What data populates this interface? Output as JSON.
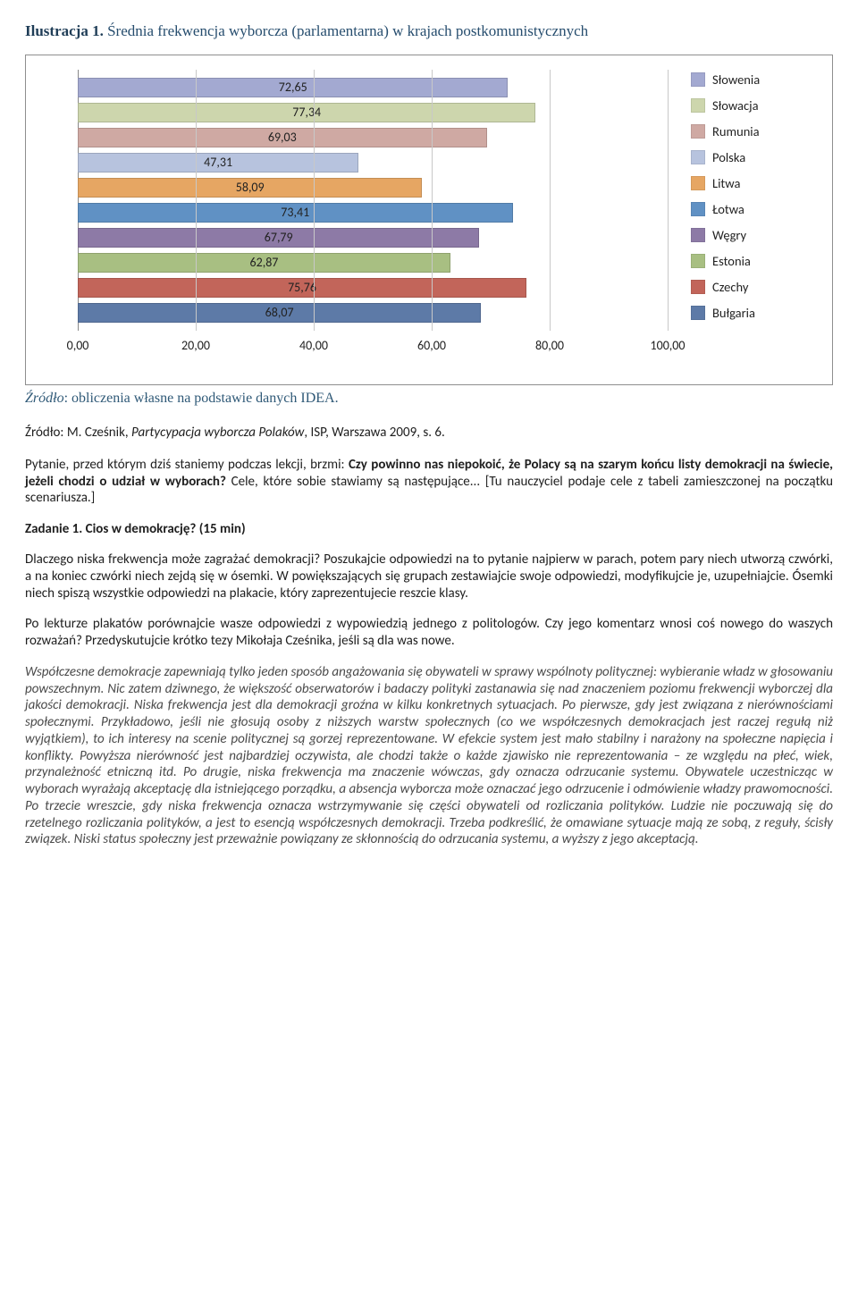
{
  "figure": {
    "caption_lead": "Ilustracja 1.",
    "caption_rest": " Średnia frekwencja wyborcza (parlamentarna) w krajach postkomunistycznych",
    "source_label": "Źródło",
    "source_text": ": obliczenia własne na podstawie danych IDEA."
  },
  "chart": {
    "type": "bar-horizontal",
    "xlim": [
      0,
      100
    ],
    "xticks": [
      "0,00",
      "20,00",
      "40,00",
      "60,00",
      "80,00",
      "100,00"
    ],
    "xtick_positions": [
      0,
      20,
      40,
      60,
      80,
      100
    ],
    "background_color": "#ffffff",
    "grid_color": "#c8c8c8",
    "bar_border_color": "rgba(0,0,0,0.15)",
    "label_fontsize": 14,
    "legend_fontsize": 14.5,
    "bars": [
      {
        "value": 72.65,
        "label": "72,65",
        "color": "#a3a9d1",
        "name": "Słowenia"
      },
      {
        "value": 77.34,
        "label": "77,34",
        "color": "#cdd6ad",
        "name": "Słowacja"
      },
      {
        "value": 69.03,
        "label": "69,03",
        "color": "#cfa9a3",
        "name": "Rumunia"
      },
      {
        "value": 47.31,
        "label": "47,31",
        "color": "#b7c3de",
        "name": "Polska"
      },
      {
        "value": 58.09,
        "label": "58,09",
        "color": "#e6a663",
        "name": "Litwa"
      },
      {
        "value": 73.41,
        "label": "73,41",
        "color": "#6091c4",
        "name": "Łotwa"
      },
      {
        "value": 67.79,
        "label": "67,79",
        "color": "#8d7aa6",
        "name": "Węgry"
      },
      {
        "value": 62.87,
        "label": "62,87",
        "color": "#a8bf82",
        "name": "Estonia"
      },
      {
        "value": 75.76,
        "label": "75,76",
        "color": "#c2655a",
        "name": "Czechy"
      },
      {
        "value": 68.07,
        "label": "68,07",
        "color": "#5d7aa7",
        "name": "Bułgaria"
      }
    ]
  },
  "citation": {
    "prefix": "Źródło: M. Cześnik, ",
    "title": "Partycypacja wyborcza Polaków",
    "suffix": ", ISP, Warszawa 2009, s. 6."
  },
  "para_question_part1": "Pytanie, przed którym dziś staniemy podczas lekcji, brzmi: ",
  "para_question_bold": "Czy powinno nas niepokoić, że Polacy są na szarym końcu listy demokracji na świecie, jeżeli chodzi o udział w wyborach?",
  "para_question_part2": " Cele, które sobie stawiamy są następujące... [Tu nauczyciel podaje cele z tabeli zamieszczonej na początku scenariusza.]",
  "task_heading": "Zadanie 1. Cios w demokrację? (15 min)",
  "para_task1": "Dlaczego niska frekwencja może zagrażać demokracji? Poszukajcie odpowiedzi na to pytanie najpierw w parach, potem pary niech utworzą czwórki, a na koniec czwórki niech zejdą się w ósemki. W powiększających się grupach zestawiajcie swoje odpowiedzi, modyfikujcie je, uzupełniajcie. Ósemki niech spiszą wszystkie odpowiedzi na plakacie, który zaprezentujecie reszcie klasy.",
  "para_task2": "Po lekturze plakatów porównajcie wasze odpowiedzi z wypowiedzią jednego z politologów. Czy jego komentarz wnosi coś nowego do waszych rozważań? Przedyskutujcie krótko tezy Mikołaja Cześnika, jeśli są dla was nowe.",
  "quote": "Współczesne demokracje zapewniają tylko jeden sposób angażowania się obywateli w sprawy wspólnoty politycznej: wybieranie władz w głosowaniu powszechnym. Nic zatem dziwnego, że większość obserwatorów i badaczy polityki zastanawia się nad znaczeniem poziomu frekwencji wyborczej dla jakości demokracji. Niska frekwencja jest dla demokracji groźna w kilku konkretnych sytuacjach. Po pierwsze, gdy jest związana z nierównościami społecznymi. Przykładowo, jeśli nie głosują osoby z niższych warstw społecznych (co we współczesnych demokracjach jest raczej regułą niż wyjątkiem), to ich interesy na scenie politycznej są gorzej reprezentowane. W efekcie system jest mało stabilny i narażony na społeczne napięcia i konflikty. Powyższa nierówność jest najbardziej oczywista, ale chodzi także o każde zjawisko nie reprezentowania – ze względu na płeć, wiek, przynależność etniczną itd. Po drugie, niska frekwencja ma znaczenie wówczas, gdy oznacza odrzucanie systemu. Obywatele uczestnicząc w wyborach wyrażają akceptację dla istniejącego porządku, a absencja wyborcza może oznaczać jego odrzucenie i odmówienie władzy prawomocności. Po trzecie wreszcie, gdy niska frekwencja oznacza wstrzymywanie się części obywateli od rozliczania polityków. Ludzie nie poczuwają się do rzetelnego rozliczania polityków, a jest to esencją współczesnych demokracji. Trzeba podkreślić, że omawiane sytuacje mają ze sobą, z reguły, ścisły związek. Niski status społeczny jest przeważnie powiązany ze skłonnością do odrzucania systemu, a wyższy z jego akceptacją."
}
